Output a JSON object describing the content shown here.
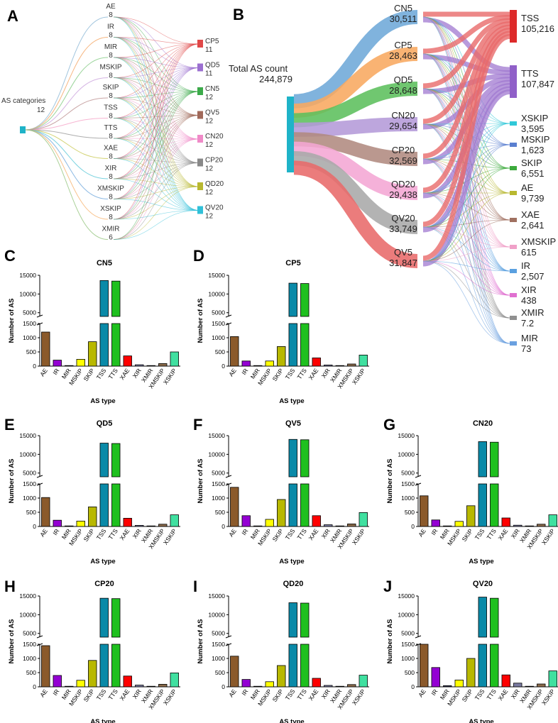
{
  "panel_letters": [
    "A",
    "B",
    "C",
    "D",
    "E",
    "F",
    "G",
    "H",
    "I",
    "J"
  ],
  "sankey_a": {
    "source_label": "AS categories",
    "source_value": "12",
    "left_nodes": [
      {
        "name": "AE",
        "value": "8",
        "color": "#8ab6d6"
      },
      {
        "name": "IR",
        "value": "8",
        "color": "#f4a460"
      },
      {
        "name": "MIR",
        "value": "8",
        "color": "#7fc97f"
      },
      {
        "name": "MSKIP",
        "value": "8",
        "color": "#c9a0dc"
      },
      {
        "name": "SKIP",
        "value": "8",
        "color": "#bc8f8f"
      },
      {
        "name": "TSS",
        "value": "8",
        "color": "#f5a3c7"
      },
      {
        "name": "TTS",
        "value": "8",
        "color": "#999999"
      },
      {
        "name": "XAE",
        "value": "8",
        "color": "#c8c850"
      },
      {
        "name": "XIR",
        "value": "8",
        "color": "#5bc8d8"
      },
      {
        "name": "XMSKIP",
        "value": "8",
        "color": "#6fa8dc"
      },
      {
        "name": "XSKIP",
        "value": "8",
        "color": "#f6b26b"
      },
      {
        "name": "XMIR",
        "value": "6",
        "color": "#93c47d"
      }
    ],
    "right_nodes": [
      {
        "name": "CP5",
        "value": "11",
        "color": "#e04848"
      },
      {
        "name": "QD5",
        "value": "11",
        "color": "#9b6fd0"
      },
      {
        "name": "CN5",
        "value": "12",
        "color": "#3caa4a"
      },
      {
        "name": "QV5",
        "value": "12",
        "color": "#a0695a"
      },
      {
        "name": "CN20",
        "value": "12",
        "color": "#f08ac8"
      },
      {
        "name": "CP20",
        "value": "12",
        "color": "#888888"
      },
      {
        "name": "QD20",
        "value": "12",
        "color": "#b8b830"
      },
      {
        "name": "QV20",
        "value": "12",
        "color": "#30c0d8"
      }
    ]
  },
  "sankey_b": {
    "source_label": "Total AS count",
    "source_value": "244,879",
    "source_color": "#1fb3c8",
    "mid_nodes": [
      {
        "name": "CN5",
        "value": "30,511",
        "color": "#6ea8d8"
      },
      {
        "name": "CP5",
        "value": "28,463",
        "color": "#f8a860"
      },
      {
        "name": "QD5",
        "value": "28,648",
        "color": "#5cbf5c"
      },
      {
        "name": "CN20",
        "value": "29,654",
        "color": "#b49ad8"
      },
      {
        "name": "CP20",
        "value": "32,569",
        "color": "#b08a80"
      },
      {
        "name": "QD20",
        "value": "29,438",
        "color": "#f4a6d4"
      },
      {
        "name": "QV20",
        "value": "33,749",
        "color": "#a8a8a8"
      },
      {
        "name": "QV5",
        "value": "31,847",
        "color": "#e86a6a"
      }
    ],
    "right_nodes": [
      {
        "name": "TSS",
        "value": "105,216",
        "color": "#dd2a2a"
      },
      {
        "name": "TTS",
        "value": "107,847",
        "color": "#9060c8"
      },
      {
        "name": "XSKIP",
        "value": "3,595",
        "color": "#30c8d8"
      },
      {
        "name": "MSKIP",
        "value": "1,623",
        "color": "#5a7fd0"
      },
      {
        "name": "SKIP",
        "value": "6,551",
        "color": "#3caa3c"
      },
      {
        "name": "AE",
        "value": "9,739",
        "color": "#b8b830"
      },
      {
        "name": "XAE",
        "value": "2,641",
        "color": "#a07060"
      },
      {
        "name": "XMSKIP",
        "value": "615",
        "color": "#f0a0c8"
      },
      {
        "name": "IR",
        "value": "2,507",
        "color": "#5aa0e0"
      },
      {
        "name": "XIR",
        "value": "438",
        "color": "#e070d0"
      },
      {
        "name": "XMIR",
        "value": "7.2",
        "color": "#909090"
      },
      {
        "name": "MIR",
        "value": "73",
        "color": "#6aa0e0"
      }
    ]
  },
  "bar_colors": [
    "#8b5a2b",
    "#9400d3",
    "#2f2f4f",
    "#ffff00",
    "#b8b800",
    "#0a8aa8",
    "#1fc01f",
    "#ff0000",
    "#7a7aa0",
    "#999999",
    "#8b6b4b",
    "#40e0a0"
  ],
  "chart_data": [
    {
      "type": "bar",
      "title": "CN5",
      "xlabel": "AS type",
      "ylabel": "Number of AS",
      "categories": [
        "AE",
        "IR",
        "MIR",
        "MSKIP",
        "SKIP",
        "TSS",
        "TTS",
        "XAE",
        "XIR",
        "XMIR",
        "XMSKIP",
        "XSKIP"
      ],
      "values": [
        1200,
        210,
        8,
        240,
        860,
        13600,
        13450,
        360,
        48,
        4,
        90,
        500
      ],
      "yticks_low": [
        "0",
        "500",
        "1000",
        "1500"
      ],
      "yticks_high": [
        "5000",
        "10000",
        "15000"
      ],
      "ylim_low": [
        0,
        1500
      ],
      "ylim_high": [
        4000,
        15000
      ]
    },
    {
      "type": "bar",
      "title": "CP5",
      "xlabel": "AS type",
      "ylabel": "Number of AS",
      "categories": [
        "AE",
        "IR",
        "MIR",
        "MSKIP",
        "SKIP",
        "TSS",
        "TTS",
        "XAE",
        "XIR",
        "XMIR",
        "XMSKIP",
        "XSKIP"
      ],
      "values": [
        1040,
        180,
        8,
        180,
        690,
        12900,
        12800,
        290,
        40,
        4,
        75,
        390
      ],
      "yticks_low": [
        "0",
        "500",
        "1000",
        "1500"
      ],
      "yticks_high": [
        "5000",
        "10000",
        "15000"
      ],
      "ylim_low": [
        0,
        1500
      ],
      "ylim_high": [
        4000,
        15000
      ]
    },
    {
      "type": "bar",
      "title": "QD5",
      "xlabel": "AS type",
      "ylabel": "Number of AS",
      "categories": [
        "AE",
        "IR",
        "MIR",
        "MSKIP",
        "SKIP",
        "TSS",
        "TTS",
        "XAE",
        "XIR",
        "XMIR",
        "XMSKIP",
        "XSKIP"
      ],
      "values": [
        1020,
        220,
        8,
        190,
        690,
        13000,
        12900,
        290,
        40,
        4,
        80,
        410
      ],
      "yticks_low": [
        "0",
        "500",
        "1000",
        "1500"
      ],
      "yticks_high": [
        "5000",
        "10000",
        "15000"
      ],
      "ylim_low": [
        0,
        1500
      ],
      "ylim_high": [
        4000,
        15000
      ]
    },
    {
      "type": "bar",
      "title": "QV5",
      "xlabel": "AS type",
      "ylabel": "Number of AS",
      "categories": [
        "AE",
        "IR",
        "MIR",
        "MSKIP",
        "SKIP",
        "TSS",
        "TTS",
        "XAE",
        "XIR",
        "XMIR",
        "XMSKIP",
        "XSKIP"
      ],
      "values": [
        1380,
        380,
        10,
        250,
        950,
        14000,
        13900,
        380,
        60,
        5,
        90,
        490
      ],
      "yticks_low": [
        "0",
        "500",
        "1000",
        "1500"
      ],
      "yticks_high": [
        "5000",
        "10000",
        "15000"
      ],
      "ylim_low": [
        0,
        1500
      ],
      "ylim_high": [
        4000,
        15000
      ]
    },
    {
      "type": "bar",
      "title": "CN20",
      "xlabel": "AS type",
      "ylabel": "Number of AS",
      "categories": [
        "AE",
        "IR",
        "MIR",
        "MSKIP",
        "SKIP",
        "TSS",
        "TTS",
        "XAE",
        "XIR",
        "XMIR",
        "XMSKIP",
        "XSKIP"
      ],
      "values": [
        1080,
        230,
        8,
        180,
        730,
        13400,
        13250,
        300,
        45,
        4,
        80,
        410
      ],
      "yticks_low": [
        "0",
        "500",
        "1000",
        "1500"
      ],
      "yticks_high": [
        "5000",
        "10000",
        "15000"
      ],
      "ylim_low": [
        0,
        1500
      ],
      "ylim_high": [
        4000,
        15000
      ]
    },
    {
      "type": "bar",
      "title": "CP20",
      "xlabel": "AS type",
      "ylabel": "Number of AS",
      "categories": [
        "AE",
        "IR",
        "MIR",
        "MSKIP",
        "SKIP",
        "TSS",
        "TTS",
        "XAE",
        "XIR",
        "XMIR",
        "XMSKIP",
        "XSKIP"
      ],
      "values": [
        1450,
        400,
        10,
        230,
        930,
        14400,
        14300,
        380,
        60,
        5,
        90,
        490
      ],
      "yticks_low": [
        "0",
        "500",
        "1000",
        "1500"
      ],
      "yticks_high": [
        "5000",
        "10000",
        "15000"
      ],
      "ylim_low": [
        0,
        1500
      ],
      "ylim_high": [
        4000,
        15000
      ]
    },
    {
      "type": "bar",
      "title": "QD20",
      "xlabel": "AS type",
      "ylabel": "Number of AS",
      "categories": [
        "AE",
        "IR",
        "MIR",
        "MSKIP",
        "SKIP",
        "TSS",
        "TTS",
        "XAE",
        "XIR",
        "XMIR",
        "XMSKIP",
        "XSKIP"
      ],
      "values": [
        1080,
        260,
        8,
        180,
        750,
        13200,
        13100,
        300,
        50,
        4,
        80,
        410
      ],
      "yticks_low": [
        "0",
        "500",
        "1000",
        "1500"
      ],
      "yticks_high": [
        "5000",
        "10000",
        "15000"
      ],
      "ylim_low": [
        0,
        1500
      ],
      "ylim_high": [
        4000,
        15000
      ]
    },
    {
      "type": "bar",
      "title": "QV20",
      "xlabel": "AS type",
      "ylabel": "Number of AS",
      "categories": [
        "AE",
        "IR",
        "MIR",
        "MSKIP",
        "SKIP",
        "TSS",
        "TTS",
        "XAE",
        "XIR",
        "XMIR",
        "XMSKIP",
        "XSKIP"
      ],
      "values": [
        1500,
        680,
        40,
        240,
        1000,
        14700,
        14400,
        420,
        130,
        8,
        100,
        560
      ],
      "yticks_low": [
        "0",
        "500",
        "1000",
        "1500"
      ],
      "yticks_high": [
        "5000",
        "10000",
        "15000"
      ],
      "ylim_low": [
        0,
        1500
      ],
      "ylim_high": [
        4000,
        15000
      ]
    }
  ]
}
